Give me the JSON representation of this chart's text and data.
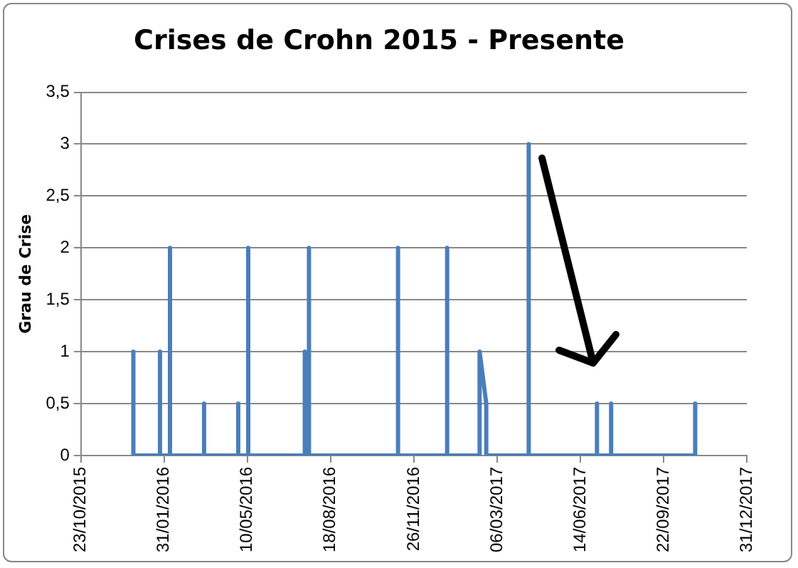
{
  "chart_data": {
    "type": "line",
    "title": "Crises de Crohn 2015 - Presente",
    "ylabel": "Grau de Crise",
    "x": [
      "2015-12-25",
      "2015-12-25",
      "2015-12-25",
      "2016-01-26",
      "2016-01-26",
      "2016-01-26",
      "2016-02-07",
      "2016-02-07",
      "2016-02-07",
      "2016-03-19",
      "2016-03-19",
      "2016-03-19",
      "2016-04-29",
      "2016-04-29",
      "2016-04-29",
      "2016-05-11",
      "2016-05-11",
      "2016-05-11",
      "2016-07-18",
      "2016-07-18",
      "2016-07-18",
      "2016-07-23",
      "2016-07-23",
      "2016-07-23",
      "2016-11-07",
      "2016-11-07",
      "2016-11-07",
      "2017-01-05",
      "2017-01-05",
      "2017-01-05",
      "2017-02-13",
      "2017-02-13",
      "2017-02-21",
      "2017-02-21",
      "2017-04-13",
      "2017-04-13",
      "2017-04-13",
      "2017-07-04",
      "2017-07-04",
      "2017-07-04",
      "2017-07-21",
      "2017-07-21",
      "2017-07-21",
      "2017-10-30",
      "2017-10-30",
      "2017-10-30"
    ],
    "series": [
      {
        "color": "#4a7ebb",
        "values": [
          0,
          1,
          0,
          0,
          1,
          0,
          0,
          2,
          0,
          0,
          0.5,
          0,
          0,
          0.5,
          0,
          0,
          2,
          0,
          0,
          1,
          0,
          0,
          2,
          0,
          0,
          2,
          0,
          0,
          2,
          0,
          0,
          1,
          0.5,
          0,
          0,
          3,
          0,
          0,
          0.5,
          0,
          0,
          0.5,
          0,
          0,
          0.5,
          0
        ]
      }
    ],
    "xlim": [
      "2015-10-23",
      "2017-12-31"
    ],
    "xticks": [
      {
        "value": "2015-10-23",
        "label": "23/10/2015"
      },
      {
        "value": "2016-01-31",
        "label": "31/01/2016"
      },
      {
        "value": "2016-05-10",
        "label": "10/05/2016"
      },
      {
        "value": "2016-08-18",
        "label": "18/08/2016"
      },
      {
        "value": "2016-11-26",
        "label": "26/11/2016"
      },
      {
        "value": "2017-03-06",
        "label": "06/03/2017"
      },
      {
        "value": "2017-06-14",
        "label": "14/06/2017"
      },
      {
        "value": "2017-09-22",
        "label": "22/09/2017"
      },
      {
        "value": "2017-12-31",
        "label": "31/12/2017"
      }
    ],
    "ylim": [
      0,
      3.5
    ],
    "yticks": [
      0,
      {
        "value": 0.5,
        "label": "0,5"
      },
      1,
      {
        "value": 1.5,
        "label": "1,5"
      },
      2,
      {
        "value": 2.5,
        "label": "2,5"
      },
      3,
      {
        "value": 3.5,
        "label": "3,5"
      }
    ],
    "grid": "y",
    "legend": false,
    "marker": "none",
    "line_style": "solid"
  }
}
